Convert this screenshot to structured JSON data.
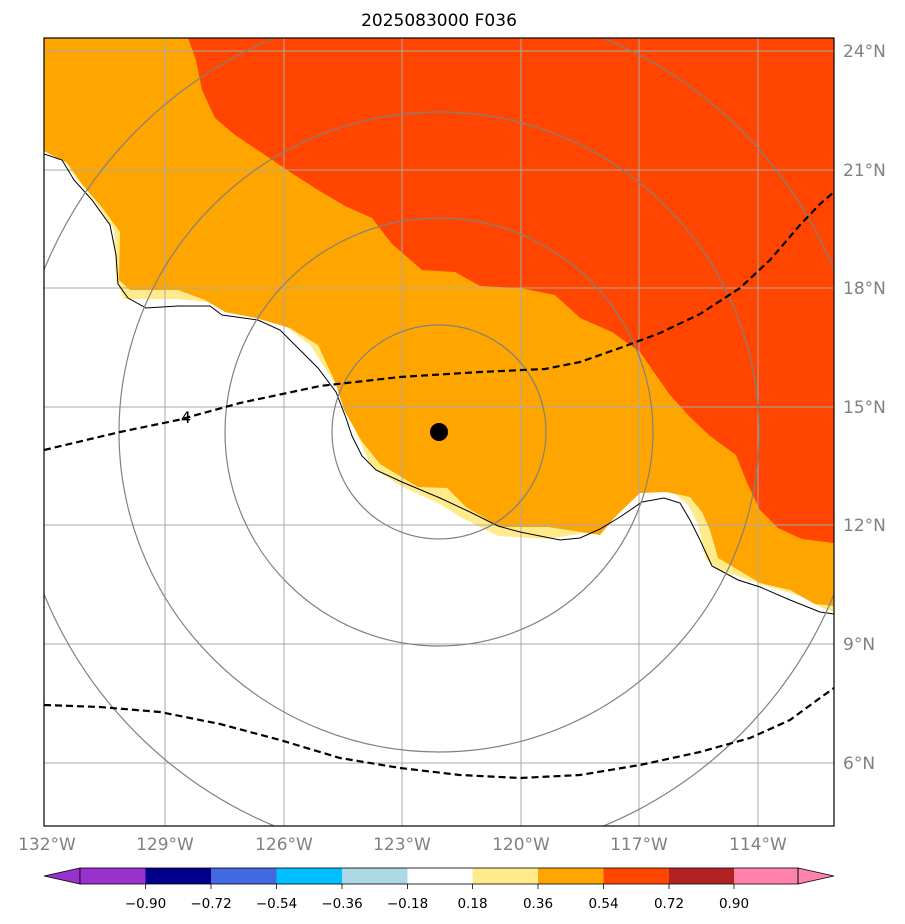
{
  "title": "2025083000 F036",
  "map": {
    "lon_labels": [
      "132°W",
      "129°W",
      "126°W",
      "123°W",
      "120°W",
      "117°W",
      "114°W"
    ],
    "lat_labels": [
      "24°N",
      "21°N",
      "18°N",
      "15°N",
      "12°N",
      "9°N",
      "6°N"
    ],
    "center_marker": "storm-center",
    "contour_label": "4",
    "gridline_color": "#a9a9a9",
    "ring_color": "#808080"
  },
  "colorbar": {
    "ticks": [
      "−0.90",
      "−0.72",
      "−0.54",
      "−0.36",
      "−0.18",
      "0.18",
      "0.36",
      "0.54",
      "0.72",
      "0.90"
    ],
    "colors": [
      "#9932cc",
      "#00008b",
      "#4169e1",
      "#00bfff",
      "#add8e6",
      "#ffffff",
      "#ffeb8b",
      "#ffa500",
      "#ff4500",
      "#b22222",
      "#ff82ab"
    ],
    "extend": "both"
  }
}
